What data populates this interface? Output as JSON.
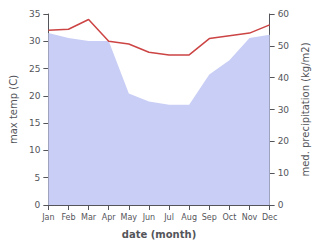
{
  "chart_data": {
    "type": "line",
    "xlabel": "date (month)",
    "ylabel": "max temp (C)",
    "y2label": "med. precipitation (kg/m2)",
    "categories": [
      "Jan",
      "Feb",
      "Mar",
      "Apr",
      "May",
      "Jun",
      "Jul",
      "Aug",
      "Sep",
      "Oct",
      "Nov",
      "Dec"
    ],
    "series": [
      {
        "type": "line",
        "color": "#cc4444",
        "values": [
          32.0,
          32.2,
          34.0,
          30.0,
          29.5,
          28.0,
          27.5,
          27.5,
          30.5,
          31.0,
          31.5,
          33.0
        ]
      },
      {
        "type": "area",
        "color": "#c8cef5",
        "axis": "y2",
        "values": [
          54.0,
          52.5,
          51.5,
          51.5,
          35.0,
          32.5,
          31.5,
          31.5,
          41.0,
          45.5,
          52.5,
          53.5
        ]
      }
    ],
    "ylim": [
      0,
      35
    ],
    "yticks": [
      0,
      5,
      10,
      15,
      20,
      25,
      30,
      35
    ],
    "y2lim": [
      0,
      60
    ],
    "y2ticks": [
      0,
      10,
      20,
      30,
      40,
      50,
      60
    ],
    "grid": false
  }
}
